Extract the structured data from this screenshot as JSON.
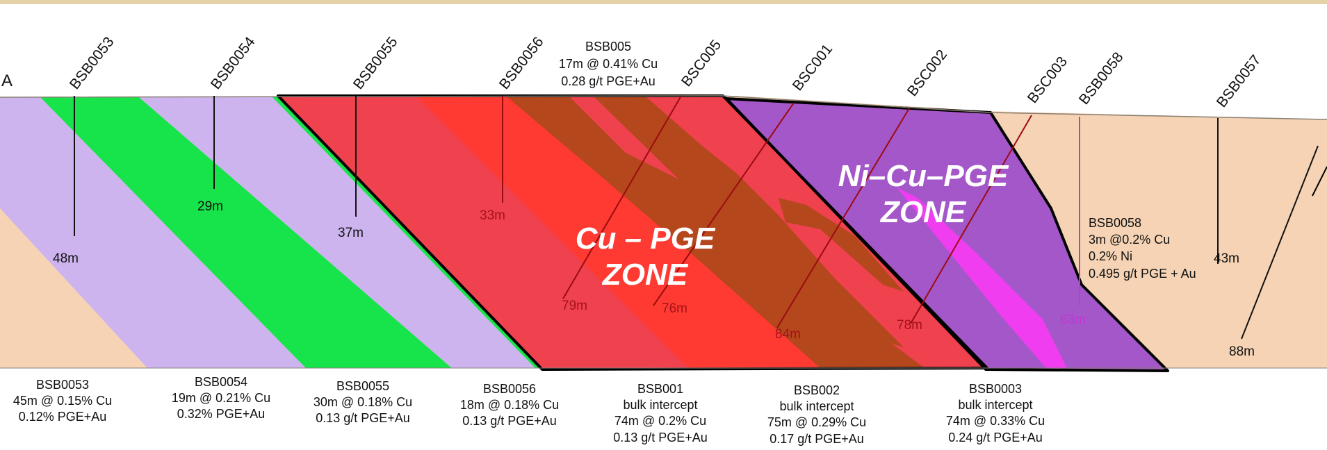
{
  "section_label": "A",
  "collars": [
    {
      "id": "BSB0053",
      "depth": "48m",
      "info": [
        "BSB0053",
        "45m @ 0.15% Cu",
        "0.12% PGE+Au"
      ]
    },
    {
      "id": "BSB0054",
      "depth": "29m",
      "info": [
        "BSB0054",
        "19m @ 0.21% Cu",
        "0.32% PGE+Au"
      ]
    },
    {
      "id": "BSB0055",
      "depth": "37m",
      "info": [
        "BSB0055",
        "30m @ 0.18% Cu",
        "0.13 g/t PGE+Au"
      ]
    },
    {
      "id": "BSB0056",
      "depth": "33m",
      "info": [
        "BSB0056",
        "18m @ 0.18% Cu",
        "0.13 g/t PGE+Au"
      ]
    },
    {
      "id": "BSC005",
      "depth": "79m",
      "info": [
        "BSB005",
        "17m @ 0.41% Cu",
        "0.28 g/t PGE+Au"
      ]
    },
    {
      "id": "BSC001",
      "depth": "76m",
      "info": [
        "BSB001",
        "bulk intercept",
        "74m @ 0.2% Cu",
        "0.13 g/t PGE+Au"
      ]
    },
    {
      "id": "BSC002",
      "depth": "84m",
      "info": [
        "BSB002",
        "bulk intercept",
        "75m @ 0.29% Cu",
        "0.17 g/t PGE+Au"
      ]
    },
    {
      "id": "BSC003",
      "depth": "78m",
      "info": [
        "BSB0003",
        "bulk intercept",
        "74m @ 0.33% Cu",
        "0.24 g/t PGE+Au"
      ]
    },
    {
      "id": "BSB0058",
      "depth": "63m",
      "info": [
        "BSB0058",
        "3m @0.2% Cu",
        "0.2% Ni",
        "0.495 g/t PGE + Au"
      ]
    },
    {
      "id": "BSB0057",
      "depth": "43m",
      "info": []
    }
  ],
  "extra_depth": "88m",
  "zones": {
    "cu_pge": [
      "Cu – PGE",
      "ZONE"
    ],
    "ni_cu_pge": [
      "Ni–Cu–PGE",
      "ZONE"
    ]
  },
  "colors": {
    "host_rock": "#f5d3b4",
    "lilac_unit": "#cdb4ef",
    "green_unit": "#17e34a",
    "cu_zone": "#f0414f",
    "cu_hot": "#ff3a2f",
    "cu_dark": "#b4471c",
    "ni_zone": "#a457c8",
    "ni_magenta": "#f03df0",
    "drill_red": "#9b0b10",
    "drill_magenta": "#c236d4"
  }
}
